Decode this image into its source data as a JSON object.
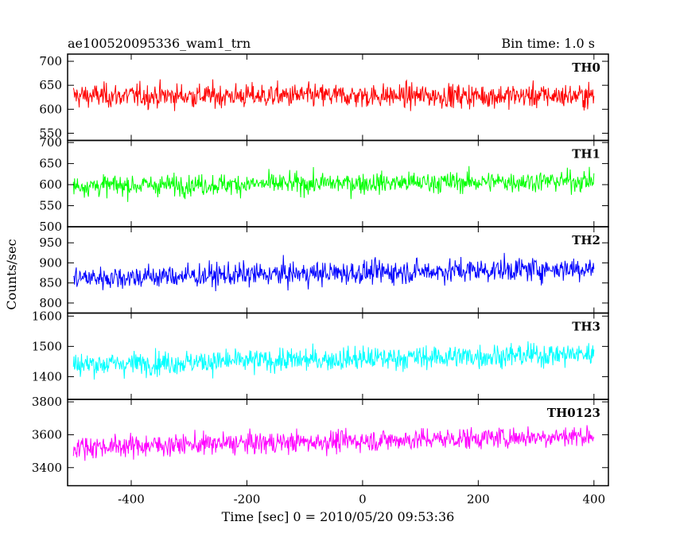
{
  "header": {
    "title": "ae100520095336_wam1_trn",
    "bin_time": "Bin time: 1.0 s"
  },
  "chart_data": {
    "type": "line",
    "xlabel": "Time [sec] 0 = 2010/05/20 09:53:36",
    "ylabel": "Counts/sec",
    "xlim": [
      -510,
      425
    ],
    "x_range": [
      -500,
      400
    ],
    "x_ticks": [
      -400,
      -200,
      0,
      200,
      400
    ],
    "bin_time_s": 1.0,
    "panels": [
      {
        "name": "TH0",
        "color": "#ff0000",
        "ylim": [
          535,
          715
        ],
        "yticks": [
          550,
          600,
          650,
          700
        ],
        "mean": 628,
        "amplitude": 32,
        "trend": 0
      },
      {
        "name": "TH1",
        "color": "#00ff00",
        "ylim": [
          500,
          705
        ],
        "yticks": [
          500,
          550,
          600,
          650,
          700
        ],
        "mean": 597,
        "amplitude": 32,
        "trend": 12
      },
      {
        "name": "TH2",
        "color": "#0000ff",
        "ylim": [
          775,
          990
        ],
        "yticks": [
          800,
          850,
          900,
          950
        ],
        "mean": 862,
        "amplitude": 38,
        "trend": 25
      },
      {
        "name": "TH3",
        "color": "#00ffff",
        "ylim": [
          1325,
          1610
        ],
        "yticks": [
          1400,
          1500,
          1600
        ],
        "mean": 1440,
        "amplitude": 50,
        "trend": 35
      },
      {
        "name": "TH0123",
        "color": "#ff00ff",
        "ylim": [
          3290,
          3815
        ],
        "yticks": [
          3400,
          3600,
          3800
        ],
        "mean": 3525,
        "amplitude": 85,
        "trend": 70
      }
    ]
  }
}
